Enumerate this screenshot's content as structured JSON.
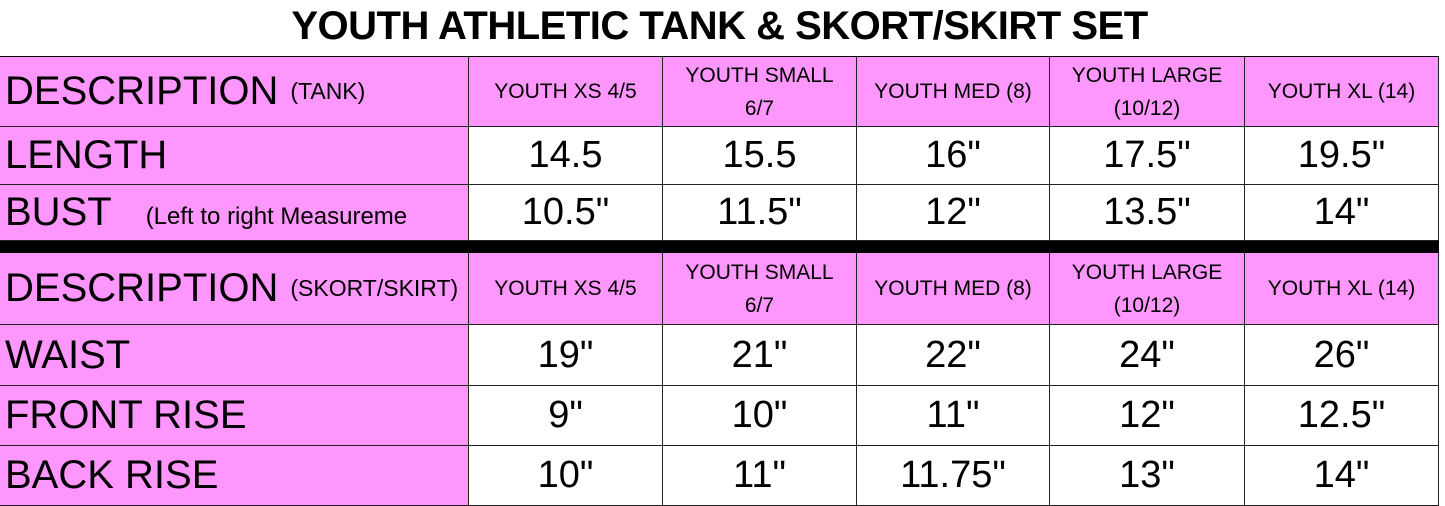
{
  "title": "YOUTH ATHLETIC TANK & SKORT/SKIRT SET",
  "tables": [
    {
      "header": {
        "label": "DESCRIPTION",
        "note": "(TANK)"
      },
      "sizes": [
        "YOUTH XS 4/5",
        "YOUTH SMALL 6/7",
        "YOUTH MED (8)",
        "YOUTH LARGE (10/12)",
        "YOUTH XL (14)"
      ],
      "rows": [
        {
          "label": "LENGTH",
          "values": [
            "14.5",
            "15.5",
            "16\"",
            "17.5\"",
            "19.5\""
          ]
        },
        {
          "label": "BUST",
          "note": "(Left to right Measureme",
          "values": [
            "10.5\"",
            "11.5\"",
            "12\"",
            "13.5\"",
            "14\""
          ]
        }
      ]
    },
    {
      "header": {
        "label": "DESCRIPTION",
        "note": "(SKORT/SKIRT)"
      },
      "sizes": [
        "YOUTH XS 4/5",
        "YOUTH SMALL 6/7",
        "YOUTH MED (8)",
        "YOUTH LARGE (10/12)",
        "YOUTH XL (14)"
      ],
      "rows": [
        {
          "label": "WAIST",
          "values": [
            "19\"",
            "21\"",
            "22\"",
            "24\"",
            "26\""
          ]
        },
        {
          "label": "FRONT RISE",
          "values": [
            "9\"",
            "10\"",
            "11\"",
            "12\"",
            "12.5\""
          ]
        },
        {
          "label": "BACK RISE",
          "values": [
            "10\"",
            "11\"",
            "11.75\"",
            "13\"",
            "14\""
          ]
        }
      ]
    }
  ]
}
